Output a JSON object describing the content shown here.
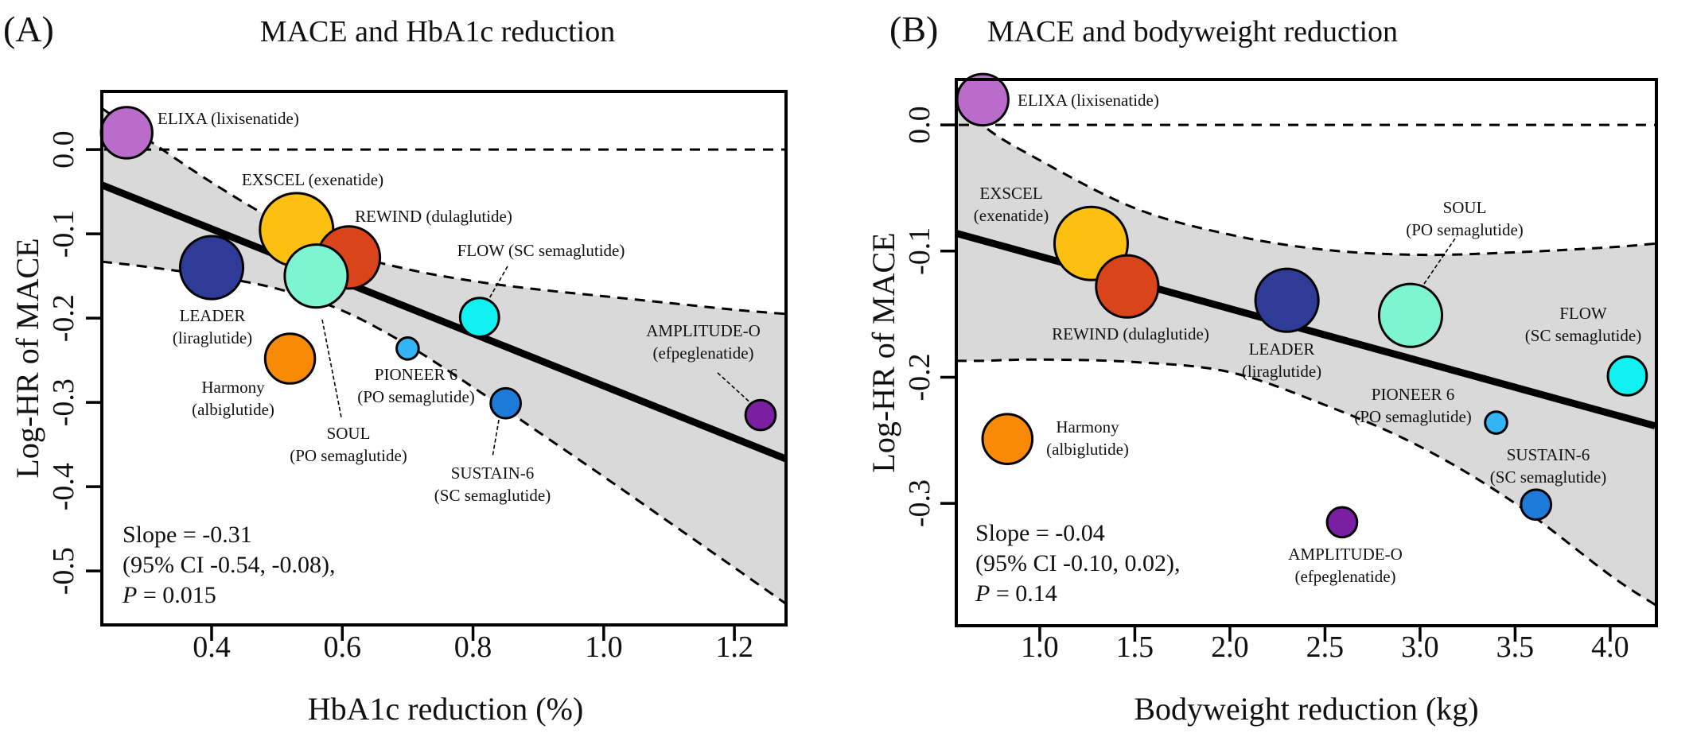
{
  "chart_data": [
    {
      "type": "scatter",
      "panel_label": "(A)",
      "title": "MACE and HbA1c reduction",
      "xlabel": "HbA1c reduction (%)",
      "ylabel": "Log-HR of MACE",
      "xlim": [
        0.232,
        1.279
      ],
      "ylim": [
        -0.564,
        0.069
      ],
      "xticks": [
        0.4,
        0.6,
        0.8,
        1.0,
        1.2
      ],
      "xtick_labels": [
        "0.4",
        "0.6",
        "0.8",
        "1.0",
        "1.2"
      ],
      "yticks": [
        0.0,
        -0.1,
        -0.2,
        -0.3,
        -0.4,
        -0.5
      ],
      "ytick_labels": [
        "0.0",
        "-0.1",
        "-0.2",
        "-0.3",
        "-0.4",
        "-0.5"
      ],
      "reference_line_y": 0.0,
      "points": [
        {
          "label": [
            "ELIXA (lixisenatide)"
          ],
          "x": 0.27,
          "y": 0.02,
          "size": 0.7,
          "color": "#b96cc9"
        },
        {
          "label": [
            "EXSCEL (exenatide)"
          ],
          "x": 0.53,
          "y": -0.095,
          "size": 1.0,
          "color": "#fdbf10"
        },
        {
          "label": [
            "REWIND (dulaglutide)"
          ],
          "x": 0.61,
          "y": -0.128,
          "size": 0.85,
          "color": "#d9441a"
        },
        {
          "label": [
            "LEADER",
            "(liraglutide)"
          ],
          "x": 0.4,
          "y": -0.14,
          "size": 0.86,
          "color": "#2e3b97"
        },
        {
          "label": [
            "SOUL",
            "(PO semaglutide)"
          ],
          "x": 0.56,
          "y": -0.15,
          "size": 0.86,
          "color": "#7df5d0"
        },
        {
          "label": [
            "FLOW (SC semaglutide)"
          ],
          "x": 0.81,
          "y": -0.199,
          "size": 0.53,
          "color": "#10f2f2"
        },
        {
          "label": [
            "Harmony",
            "(albiglutide)"
          ],
          "x": 0.52,
          "y": -0.248,
          "size": 0.68,
          "color": "#f98a06"
        },
        {
          "label": [
            "PIONEER 6",
            "(PO semaglutide)"
          ],
          "x": 0.7,
          "y": -0.236,
          "size": 0.3,
          "color": "#33b5f5"
        },
        {
          "label": [
            "SUSTAIN-6",
            "(SC semaglutide)"
          ],
          "x": 0.85,
          "y": -0.301,
          "size": 0.41,
          "color": "#1d7ad8"
        },
        {
          "label": [
            "AMPLITUDE-O",
            "(efpeglenatide)"
          ],
          "x": 1.24,
          "y": -0.315,
          "size": 0.41,
          "color": "#7a1fa2"
        }
      ],
      "fit_line": {
        "x": [
          0.232,
          1.279
        ],
        "y": [
          -0.042,
          -0.367
        ]
      },
      "ci_band": {
        "x": [
          0.232,
          0.3,
          0.4,
          0.5,
          0.6,
          0.7,
          0.8,
          0.9,
          1.0,
          1.1,
          1.2,
          1.279
        ],
        "upper": [
          0.049,
          0.013,
          -0.039,
          -0.085,
          -0.121,
          -0.142,
          -0.156,
          -0.166,
          -0.174,
          -0.182,
          -0.19,
          -0.195
        ],
        "lower": [
          -0.133,
          -0.139,
          -0.15,
          -0.165,
          -0.191,
          -0.232,
          -0.282,
          -0.335,
          -0.388,
          -0.442,
          -0.496,
          -0.539
        ]
      },
      "stats": {
        "slope": "Slope = -0.31",
        "ci": "(95% CI -0.54, -0.08),",
        "p_symbol": "P",
        "p_value": " = 0.015"
      }
    },
    {
      "type": "scatter",
      "panel_label": "(B)",
      "title": "MACE and bodyweight reduction",
      "xlabel": "Bodyweight reduction (kg)",
      "ylabel": "Log-HR of MACE",
      "xlim": [
        0.561,
        4.243
      ],
      "ylim": [
        -0.397,
        0.036
      ],
      "xticks": [
        1.0,
        1.5,
        2.0,
        2.5,
        3.0,
        3.5,
        4.0
      ],
      "xtick_labels": [
        "1.0",
        "1.5",
        "2.0",
        "2.5",
        "3.0",
        "3.5",
        "4.0"
      ],
      "yticks": [
        0.0,
        -0.1,
        -0.2,
        -0.3
      ],
      "ytick_labels": [
        "0.0",
        "-0.1",
        "-0.2",
        "-0.3"
      ],
      "reference_line_y": 0.0,
      "points": [
        {
          "label": [
            "ELIXA (lixisenatide)"
          ],
          "x": 0.7,
          "y": 0.02,
          "size": 0.7,
          "color": "#b96cc9"
        },
        {
          "label": [
            "EXSCEL",
            "(exenatide)"
          ],
          "x": 1.27,
          "y": -0.094,
          "size": 1.0,
          "color": "#fdbf10"
        },
        {
          "label": [
            "REWIND (dulaglutide)"
          ],
          "x": 1.46,
          "y": -0.128,
          "size": 0.85,
          "color": "#d9441a"
        },
        {
          "label": [
            "LEADER",
            "(liraglutide)"
          ],
          "x": 2.3,
          "y": -0.139,
          "size": 0.86,
          "color": "#2e3b97"
        },
        {
          "label": [
            "SOUL",
            "(PO semaglutide)"
          ],
          "x": 2.95,
          "y": -0.151,
          "size": 0.86,
          "color": "#7df5d0"
        },
        {
          "label": [
            "FLOW",
            "(SC semaglutide)"
          ],
          "x": 4.09,
          "y": -0.199,
          "size": 0.53,
          "color": "#10f2f2"
        },
        {
          "label": [
            "Harmony",
            "(albiglutide)"
          ],
          "x": 0.83,
          "y": -0.249,
          "size": 0.68,
          "color": "#f98a06"
        },
        {
          "label": [
            "PIONEER 6",
            "(PO semaglutide)"
          ],
          "x": 3.4,
          "y": -0.236,
          "size": 0.3,
          "color": "#33b5f5"
        },
        {
          "label": [
            "SUSTAIN-6",
            "(SC semaglutide)"
          ],
          "x": 3.61,
          "y": -0.301,
          "size": 0.41,
          "color": "#1d7ad8"
        },
        {
          "label": [
            "AMPLITUDE-O",
            "(efpeglenatide)"
          ],
          "x": 2.59,
          "y": -0.315,
          "size": 0.41,
          "color": "#7a1fa2"
        }
      ],
      "fit_line": {
        "x": [
          0.563,
          4.236
        ],
        "y": [
          -0.086,
          -0.2386
        ]
      },
      "ci_band": {
        "x": [
          0.561,
          0.7,
          1.0,
          1.5,
          2.0,
          2.5,
          3.0,
          3.5,
          4.0,
          4.243
        ],
        "upper": [
          0.03,
          0.0,
          -0.028,
          -0.066,
          -0.087,
          -0.099,
          -0.103,
          -0.101,
          -0.097,
          -0.094
        ],
        "lower": [
          -0.187,
          -0.187,
          -0.186,
          -0.188,
          -0.196,
          -0.222,
          -0.255,
          -0.3,
          -0.357,
          -0.381
        ]
      },
      "stats": {
        "slope": "Slope = -0.04",
        "ci": "(95% CI -0.10, 0.02),",
        "p_symbol": "P",
        "p_value": " = 0.14"
      }
    }
  ]
}
